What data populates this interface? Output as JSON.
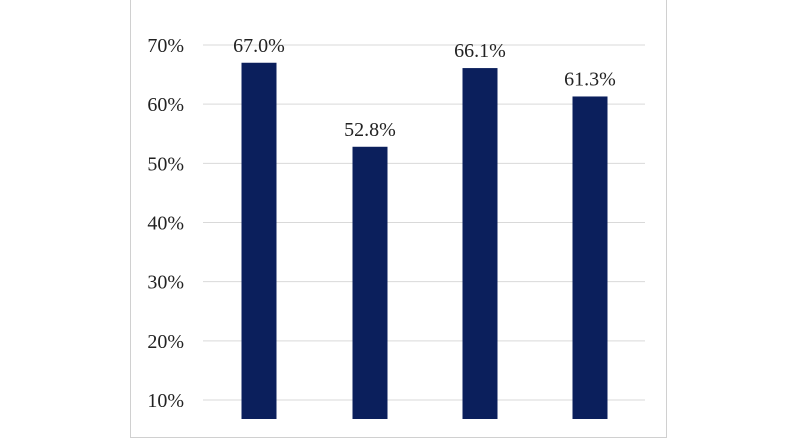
{
  "chart_data": {
    "type": "bar",
    "categories": [
      "",
      "",
      "",
      ""
    ],
    "values": [
      67.0,
      52.8,
      66.1,
      61.3
    ],
    "data_labels": [
      "67.0%",
      "52.8%",
      "66.1%",
      "61.3%"
    ],
    "y_ticks": [
      10,
      20,
      30,
      40,
      50,
      60,
      70
    ],
    "y_tick_labels": [
      "10%",
      "20%",
      "30%",
      "40%",
      "50%",
      "60%",
      "70%"
    ],
    "ylim": [
      0,
      70
    ],
    "title": "",
    "xlabel": "",
    "ylabel": "",
    "grid": true,
    "legend": "none",
    "colors": {
      "bar": "#0b1f5c",
      "grid": "#d9d9d9"
    }
  }
}
